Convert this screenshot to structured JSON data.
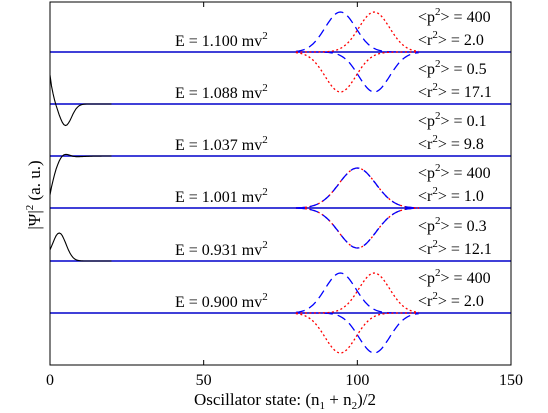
{
  "chart_data": {
    "type": "line",
    "title": "",
    "xlabel_main": "Oscillator state: (n",
    "xlabel_sub1": "1",
    "xlabel_mid": " + n",
    "xlabel_sub2": "2",
    "xlabel_end": ")/2",
    "ylabel_pre": "|Ψ|",
    "ylabel_sup": "2",
    "ylabel_post": " (a. u.)",
    "xlim": [
      0,
      150
    ],
    "xticks": [
      0,
      50,
      100,
      150
    ],
    "xtick_labels": [
      "0",
      "50",
      "100",
      "150"
    ],
    "grid": false,
    "colors": {
      "axis": "#000000",
      "baseline": "#0000cc",
      "dashed": "#0000ff",
      "dotted": "#ff0000",
      "solid": "#000000"
    },
    "panels": [
      {
        "energy_prefix": "E = 1.100 mv",
        "energy_sup": "2",
        "p_label": "<p",
        "p_sup": "2",
        "p_val": "> = 400",
        "r_label": "<r",
        "r_sup": "2",
        "r_val": "> = 2.0",
        "kind": "split",
        "center": 100,
        "sep": 5.5,
        "width": 5
      },
      {
        "energy_prefix": "E = 1.088 mv",
        "energy_sup": "2",
        "p_label": "<p",
        "p_sup": "2",
        "p_val": "> = 0.5",
        "r_label": "<r",
        "r_sup": "2",
        "r_val": "> = 17.1",
        "kind": "edge_dip"
      },
      {
        "energy_prefix": "E = 1.037 mv",
        "energy_sup": "2",
        "p_label": "<p",
        "p_sup": "2",
        "p_val": "> = 0.1",
        "r_label": "<r",
        "r_sup": "2",
        "r_val": "> = 9.8",
        "kind": "edge_rise"
      },
      {
        "energy_prefix": "E = 1.001 mv",
        "energy_sup": "2",
        "p_label": "<p",
        "p_sup": "2",
        "p_val": "> = 400",
        "r_label": "<r",
        "r_sup": "2",
        "r_val": "> = 1.0",
        "kind": "centered",
        "center": 100,
        "width": 6
      },
      {
        "energy_prefix": "E = 0.931 mv",
        "energy_sup": "2",
        "p_label": "<p",
        "p_sup": "2",
        "p_val": "> = 0.3",
        "r_label": "<r",
        "r_sup": "2",
        "r_val": "> = 12.1",
        "kind": "edge_bump"
      },
      {
        "energy_prefix": "E = 0.900 mv",
        "energy_sup": "2",
        "p_label": "<p",
        "p_sup": "2",
        "p_val": "> = 400",
        "r_label": "<r",
        "r_sup": "2",
        "r_val": "> = 2.0",
        "kind": "split_wide",
        "center": 100,
        "sep": 5.5,
        "width": 5
      }
    ]
  }
}
